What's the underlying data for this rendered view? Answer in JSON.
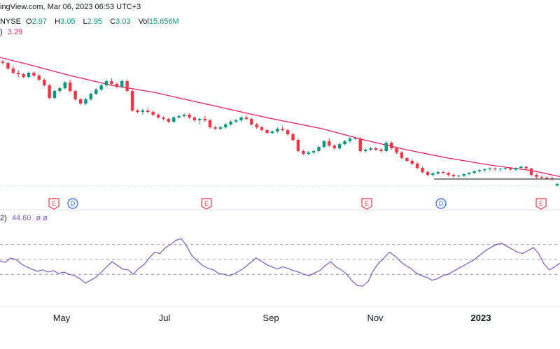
{
  "header": {
    "watermark": "ingView.com, Mar 06, 2023 06:53 UTC+3",
    "exchange": "NYSE",
    "o_label": "O",
    "o_value": "2.97",
    "h_label": "H",
    "h_value": "3.05",
    "l_label": "L",
    "l_value": "2.95",
    "c_label": "C",
    "c_value": "3.03",
    "vol_label": "Vol",
    "vol_value": "15.656M",
    "ma_label": ")",
    "ma_value": "3.29",
    "rsi_label": "2)",
    "rsi_value": "44.60",
    "rsi_extra": "ø ø"
  },
  "colors": {
    "up": "#089981",
    "down": "#f23645",
    "ma": "#e91e63",
    "rsi": "#7e57c2",
    "earnings": "#f23645",
    "dividend": "#2962ff",
    "grid_dash": "#9598a1",
    "divider": "#e0e3eb"
  },
  "chart_data": [
    {
      "type": "candlestick",
      "x_ticks": [
        "May",
        "Jul",
        "Sep",
        "Nov",
        "2023"
      ],
      "y_range_estimate": [
        2.8,
        7.6
      ],
      "moving_average": {
        "last_value": 3.29,
        "points": [
          [
            0,
            7.55
          ],
          [
            40,
            7.3
          ],
          [
            100,
            6.9
          ],
          [
            160,
            6.55
          ],
          [
            220,
            6.3
          ],
          [
            300,
            5.85
          ],
          [
            380,
            5.4
          ],
          [
            460,
            5.0
          ],
          [
            520,
            4.6
          ],
          [
            580,
            4.25
          ],
          [
            640,
            3.95
          ],
          [
            700,
            3.7
          ],
          [
            760,
            3.5
          ],
          [
            800,
            3.29
          ]
        ]
      },
      "candles": [
        [
          7.4,
          7.45,
          7.3,
          7.35
        ],
        [
          7.35,
          7.4,
          7.1,
          7.15
        ],
        [
          7.15,
          7.25,
          6.95,
          7.0
        ],
        [
          7.0,
          7.1,
          6.85,
          6.95
        ],
        [
          6.95,
          7.0,
          6.8,
          6.85
        ],
        [
          6.85,
          7.05,
          6.8,
          7.0
        ],
        [
          7.0,
          7.05,
          6.85,
          6.9
        ],
        [
          6.9,
          6.95,
          6.7,
          6.75
        ],
        [
          6.75,
          6.8,
          6.5,
          6.55
        ],
        [
          6.55,
          6.6,
          6.05,
          6.1
        ],
        [
          6.1,
          6.4,
          6.05,
          6.35
        ],
        [
          6.35,
          6.5,
          6.3,
          6.45
        ],
        [
          6.45,
          6.7,
          6.4,
          6.65
        ],
        [
          6.65,
          6.75,
          6.3,
          6.35
        ],
        [
          6.35,
          6.4,
          6.0,
          6.05
        ],
        [
          6.05,
          6.1,
          5.85,
          5.9
        ],
        [
          5.9,
          6.1,
          5.85,
          6.05
        ],
        [
          6.05,
          6.3,
          6.0,
          6.25
        ],
        [
          6.25,
          6.45,
          6.2,
          6.4
        ],
        [
          6.4,
          6.6,
          6.35,
          6.55
        ],
        [
          6.55,
          6.75,
          6.5,
          6.7
        ],
        [
          6.7,
          6.8,
          6.55,
          6.6
        ],
        [
          6.6,
          6.65,
          6.45,
          6.5
        ],
        [
          6.5,
          6.75,
          6.45,
          6.7
        ],
        [
          6.7,
          6.75,
          6.3,
          6.35
        ],
        [
          6.35,
          6.4,
          5.6,
          5.65
        ],
        [
          5.65,
          5.7,
          5.55,
          5.6
        ],
        [
          5.6,
          5.7,
          5.5,
          5.65
        ],
        [
          5.65,
          5.75,
          5.55,
          5.6
        ],
        [
          5.6,
          5.65,
          5.45,
          5.5
        ],
        [
          5.5,
          5.55,
          5.35,
          5.4
        ],
        [
          5.4,
          5.45,
          5.3,
          5.35
        ],
        [
          5.35,
          5.4,
          5.2,
          5.25
        ],
        [
          5.25,
          5.45,
          5.2,
          5.4
        ],
        [
          5.4,
          5.5,
          5.35,
          5.45
        ],
        [
          5.45,
          5.55,
          5.4,
          5.5
        ],
        [
          5.5,
          5.55,
          5.35,
          5.4
        ],
        [
          5.4,
          5.45,
          5.25,
          5.3
        ],
        [
          5.3,
          5.4,
          5.15,
          5.35
        ],
        [
          5.35,
          5.45,
          5.25,
          5.3
        ],
        [
          5.3,
          5.35,
          5.0,
          5.05
        ],
        [
          5.05,
          5.1,
          4.95,
          5.0
        ],
        [
          5.0,
          5.1,
          4.95,
          5.05
        ],
        [
          5.05,
          5.2,
          5.0,
          5.15
        ],
        [
          5.15,
          5.3,
          5.1,
          5.25
        ],
        [
          5.25,
          5.35,
          5.2,
          5.3
        ],
        [
          5.3,
          5.45,
          5.25,
          5.4
        ],
        [
          5.4,
          5.5,
          5.3,
          5.35
        ],
        [
          5.35,
          5.4,
          5.1,
          5.15
        ],
        [
          5.15,
          5.2,
          5.0,
          5.05
        ],
        [
          5.05,
          5.1,
          4.9,
          4.95
        ],
        [
          4.95,
          5.0,
          4.8,
          4.85
        ],
        [
          4.85,
          4.95,
          4.8,
          4.9
        ],
        [
          4.9,
          5.05,
          4.85,
          5.0
        ],
        [
          5.0,
          5.1,
          4.9,
          4.95
        ],
        [
          4.95,
          5.0,
          4.75,
          4.8
        ],
        [
          4.8,
          4.85,
          4.55,
          4.6
        ],
        [
          4.6,
          4.65,
          4.15,
          4.2
        ],
        [
          4.2,
          4.25,
          4.05,
          4.1
        ],
        [
          4.1,
          4.2,
          4.05,
          4.15
        ],
        [
          4.15,
          4.25,
          4.1,
          4.2
        ],
        [
          4.2,
          4.4,
          4.15,
          4.35
        ],
        [
          4.35,
          4.6,
          4.3,
          4.55
        ],
        [
          4.55,
          4.65,
          4.35,
          4.4
        ],
        [
          4.4,
          4.45,
          4.25,
          4.3
        ],
        [
          4.3,
          4.5,
          4.25,
          4.45
        ],
        [
          4.45,
          4.6,
          4.4,
          4.55
        ],
        [
          4.55,
          4.7,
          4.5,
          4.65
        ],
        [
          4.65,
          4.7,
          4.6,
          4.65
        ],
        [
          4.65,
          4.7,
          4.15,
          4.2
        ],
        [
          4.2,
          4.3,
          4.15,
          4.25
        ],
        [
          4.25,
          4.35,
          4.2,
          4.3
        ],
        [
          4.3,
          4.35,
          4.2,
          4.25
        ],
        [
          4.25,
          4.3,
          4.15,
          4.2
        ],
        [
          4.2,
          4.55,
          4.15,
          4.5
        ],
        [
          4.5,
          4.55,
          4.25,
          4.3
        ],
        [
          4.3,
          4.35,
          4.1,
          4.15
        ],
        [
          4.15,
          4.2,
          3.9,
          3.95
        ],
        [
          3.95,
          4.0,
          3.8,
          3.85
        ],
        [
          3.85,
          3.9,
          3.7,
          3.75
        ],
        [
          3.75,
          3.8,
          3.55,
          3.6
        ],
        [
          3.6,
          3.65,
          3.4,
          3.45
        ],
        [
          3.45,
          3.5,
          3.3,
          3.35
        ],
        [
          3.35,
          3.45,
          3.3,
          3.4
        ],
        [
          3.4,
          3.5,
          3.35,
          3.45
        ],
        [
          3.45,
          3.5,
          3.38,
          3.42
        ],
        [
          3.42,
          3.45,
          3.3,
          3.35
        ],
        [
          3.35,
          3.4,
          3.25,
          3.3
        ],
        [
          3.3,
          3.35,
          3.25,
          3.32
        ],
        [
          3.32,
          3.4,
          3.28,
          3.38
        ],
        [
          3.38,
          3.45,
          3.33,
          3.42
        ],
        [
          3.42,
          3.5,
          3.38,
          3.48
        ],
        [
          3.48,
          3.55,
          3.42,
          3.52
        ],
        [
          3.52,
          3.58,
          3.46,
          3.55
        ],
        [
          3.55,
          3.62,
          3.5,
          3.58
        ],
        [
          3.58,
          3.62,
          3.5,
          3.55
        ],
        [
          3.55,
          3.6,
          3.48,
          3.57
        ],
        [
          3.57,
          3.64,
          3.52,
          3.6
        ],
        [
          3.6,
          3.63,
          3.5,
          3.54
        ],
        [
          3.54,
          3.62,
          3.5,
          3.6
        ],
        [
          3.6,
          3.68,
          3.55,
          3.64
        ],
        [
          3.64,
          3.66,
          3.55,
          3.58
        ],
        [
          3.58,
          3.6,
          3.3,
          3.35
        ],
        [
          3.35,
          3.4,
          3.22,
          3.28
        ],
        [
          3.28,
          3.32,
          3.2,
          3.25
        ],
        [
          3.25,
          3.3,
          3.18,
          3.22
        ],
        [
          3.22,
          3.28,
          3.15,
          3.2
        ],
        [
          2.97,
          3.05,
          2.95,
          3.03
        ]
      ]
    },
    {
      "type": "line",
      "name": "RSI",
      "last_value": 44.6,
      "y_range": [
        0,
        100
      ],
      "levels": [
        70,
        50,
        30
      ],
      "values": [
        48,
        46,
        52,
        50,
        44,
        40,
        37,
        34,
        36,
        33,
        35,
        31,
        33,
        30,
        28,
        24,
        18,
        22,
        26,
        33,
        40,
        47,
        42,
        37,
        36,
        30,
        38,
        43,
        52,
        60,
        58,
        66,
        70,
        76,
        78,
        68,
        55,
        48,
        42,
        38,
        36,
        31,
        30,
        28,
        31,
        35,
        40,
        46,
        52,
        48,
        43,
        40,
        37,
        40,
        38,
        35,
        33,
        30,
        28,
        32,
        35,
        42,
        47,
        40,
        36,
        30,
        21,
        15,
        14,
        20,
        35,
        45,
        52,
        60,
        55,
        48,
        42,
        38,
        32,
        28,
        26,
        22,
        24,
        28,
        30,
        34,
        38,
        42,
        46,
        50,
        56,
        62,
        66,
        70,
        72,
        68,
        64,
        60,
        58,
        62,
        66,
        58,
        44,
        36,
        40,
        45
      ]
    }
  ]
}
